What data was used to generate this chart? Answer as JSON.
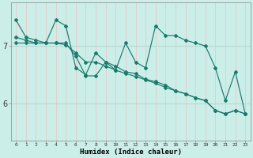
{
  "xlabel": "Humidex (Indice chaleur)",
  "bg_color": "#cceee8",
  "grid_color_v": "#e8c8c8",
  "grid_color_h": "#b8d8d0",
  "line_color": "#1a7a6e",
  "x_ticks": [
    0,
    1,
    2,
    3,
    4,
    5,
    6,
    7,
    8,
    9,
    10,
    11,
    12,
    13,
    14,
    15,
    16,
    17,
    18,
    19,
    20,
    21,
    22,
    23
  ],
  "y_ticks": [
    6,
    7
  ],
  "xlim": [
    -0.5,
    23.5
  ],
  "ylim": [
    5.35,
    7.75
  ],
  "series": [
    [
      7.45,
      7.15,
      7.1,
      7.05,
      7.05,
      7.02,
      6.88,
      6.72,
      6.72,
      6.65,
      6.58,
      6.52,
      6.47,
      6.41,
      6.35,
      6.28,
      6.22,
      6.17,
      6.1,
      6.05,
      5.88,
      5.82,
      5.88,
      5.82
    ],
    [
      7.15,
      7.1,
      7.05,
      7.05,
      7.45,
      7.35,
      6.62,
      6.5,
      6.88,
      6.72,
      6.58,
      7.05,
      6.72,
      6.62,
      7.35,
      7.18,
      7.18,
      7.1,
      7.05,
      7.0,
      6.62,
      6.05,
      6.55,
      5.82
    ],
    [
      7.05,
      7.05,
      7.05,
      7.05,
      7.05,
      7.05,
      6.82,
      6.48,
      6.48,
      6.72,
      6.65,
      6.55,
      6.52,
      6.42,
      6.38,
      6.32,
      6.22,
      6.17,
      6.1,
      6.05,
      5.88,
      5.82,
      5.88,
      5.82
    ]
  ]
}
